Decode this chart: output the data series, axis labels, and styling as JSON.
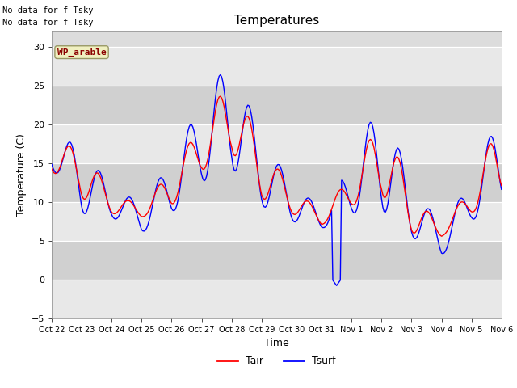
{
  "title": "Temperatures",
  "xlabel": "Time",
  "ylabel": "Temperature (C)",
  "ylim": [
    -5,
    32
  ],
  "yticks": [
    -5,
    0,
    5,
    10,
    15,
    20,
    25,
    30
  ],
  "plot_bg_color": "#dcdcdc",
  "tair_color": "red",
  "tsurf_color": "blue",
  "text_no_data1": "No data for f_Tsky",
  "text_no_data2": "No data for f_Tsky",
  "wp_label": "WP_arable",
  "legend_labels": [
    "Tair",
    "Tsurf"
  ],
  "x_tick_labels": [
    "Oct 22",
    "Oct 23",
    "Oct 24",
    "Oct 25",
    "Oct 26",
    "Oct 27",
    "Oct 28",
    "Oct 29",
    "Oct 30",
    "Oct 31",
    "Nov 1",
    "Nov 2",
    "Nov 3",
    "Nov 4",
    "Nov 5",
    "Nov 6"
  ],
  "grid_color": "#b0b0b0",
  "grid_lw": 0.8,
  "line_lw": 1.0,
  "band_colors": [
    "#e8e8e8",
    "#d0d0d0"
  ]
}
